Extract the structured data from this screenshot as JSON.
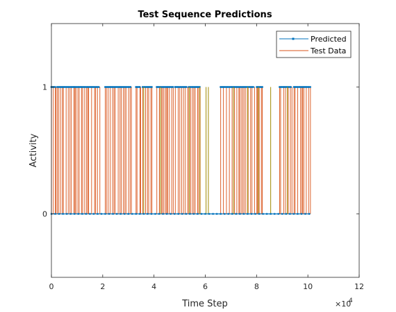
{
  "chart_data": {
    "type": "line",
    "title": "Test Sequence Predictions",
    "xlabel": "Time Step",
    "ylabel": "Activity",
    "xlim": [
      0,
      120000
    ],
    "ylim": [
      -0.5,
      1.5
    ],
    "x_ticks": [
      0,
      20000,
      40000,
      60000,
      80000,
      100000,
      120000
    ],
    "x_tick_labels": [
      "0",
      "2",
      "4",
      "6",
      "8",
      "10",
      "12"
    ],
    "y_ticks": [
      0,
      1
    ],
    "y_tick_labels": [
      "0",
      "1"
    ],
    "x_exponent_base": "×10",
    "x_exponent_power": "4",
    "grid": false,
    "legend_position": "top-right",
    "series": [
      {
        "name": "Predicted",
        "color": "#0072BD",
        "marker": "square",
        "x_range": [
          0,
          101000
        ],
        "values": [
          0,
          1
        ]
      },
      {
        "name": "Test Data",
        "color": "#D95319",
        "marker": "none",
        "x_range": [
          0,
          101000
        ],
        "values": [
          0,
          1
        ]
      }
    ],
    "sparse_event_color": "#A08A00",
    "activity_segments": [
      [
        0,
        1800
      ],
      [
        2300,
        8800
      ],
      [
        9200,
        18900
      ],
      [
        21000,
        31200
      ],
      [
        33000,
        34800
      ],
      [
        35600,
        39200
      ],
      [
        41100,
        47500
      ],
      [
        48300,
        53100
      ],
      [
        53600,
        58000
      ],
      [
        66000,
        79200
      ],
      [
        80100,
        82200
      ],
      [
        89000,
        93800
      ],
      [
        94600,
        101000
      ]
    ],
    "sparse_events": [
      36000,
      42500,
      53800,
      57900,
      60300,
      61200,
      71000,
      76500,
      80700,
      85500,
      92000
    ]
  }
}
